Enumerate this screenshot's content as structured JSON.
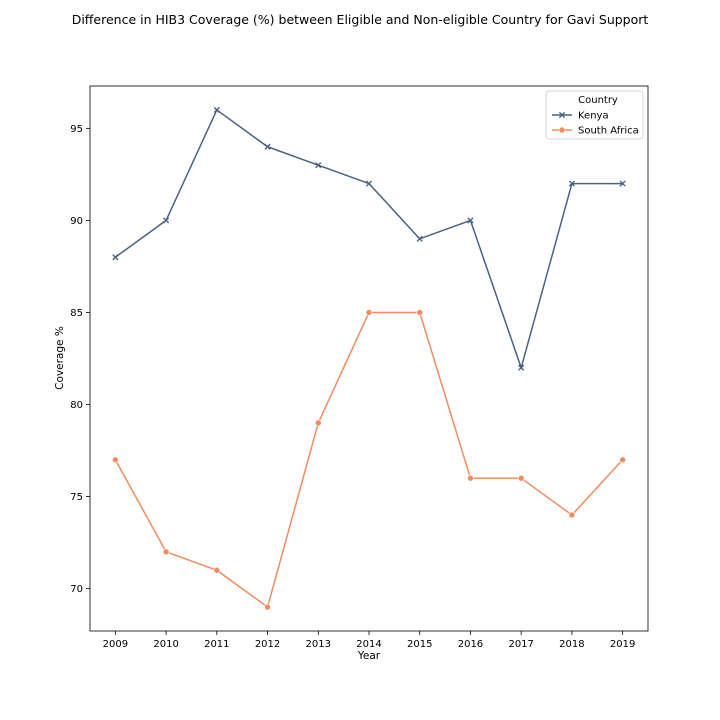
{
  "chart_data": {
    "type": "line",
    "title": "Difference in HIB3 Coverage (%) between Eligible and Non-eligible Country for Gavi Support",
    "xlabel": "Year",
    "ylabel": "Coverage %",
    "x": [
      2009,
      2010,
      2011,
      2012,
      2013,
      2014,
      2015,
      2016,
      2017,
      2018,
      2019
    ],
    "x_tick_labels": [
      "2009",
      "2010",
      "2011",
      "2012",
      "2013",
      "2014",
      "2015",
      "2016",
      "2017",
      "2018",
      "2019"
    ],
    "y_ticks": [
      70,
      75,
      80,
      85,
      90,
      95
    ],
    "y_tick_labels": [
      "70",
      "75",
      "80",
      "85",
      "90",
      "95"
    ],
    "xlim": [
      2008.5,
      2019.5
    ],
    "ylim": [
      67.7,
      97.3
    ],
    "grid": false,
    "legend": {
      "title": "Country",
      "placement": "top-right"
    },
    "series": [
      {
        "name": "Kenya",
        "color": "#4a6187",
        "marker": "x",
        "values": [
          88,
          90,
          96,
          94,
          93,
          92,
          89,
          90,
          82,
          92,
          92
        ]
      },
      {
        "name": "South Africa",
        "color": "#f28c5f",
        "marker": "o",
        "values": [
          77,
          72,
          71,
          69,
          79,
          85,
          85,
          76,
          76,
          74,
          77
        ]
      }
    ]
  }
}
